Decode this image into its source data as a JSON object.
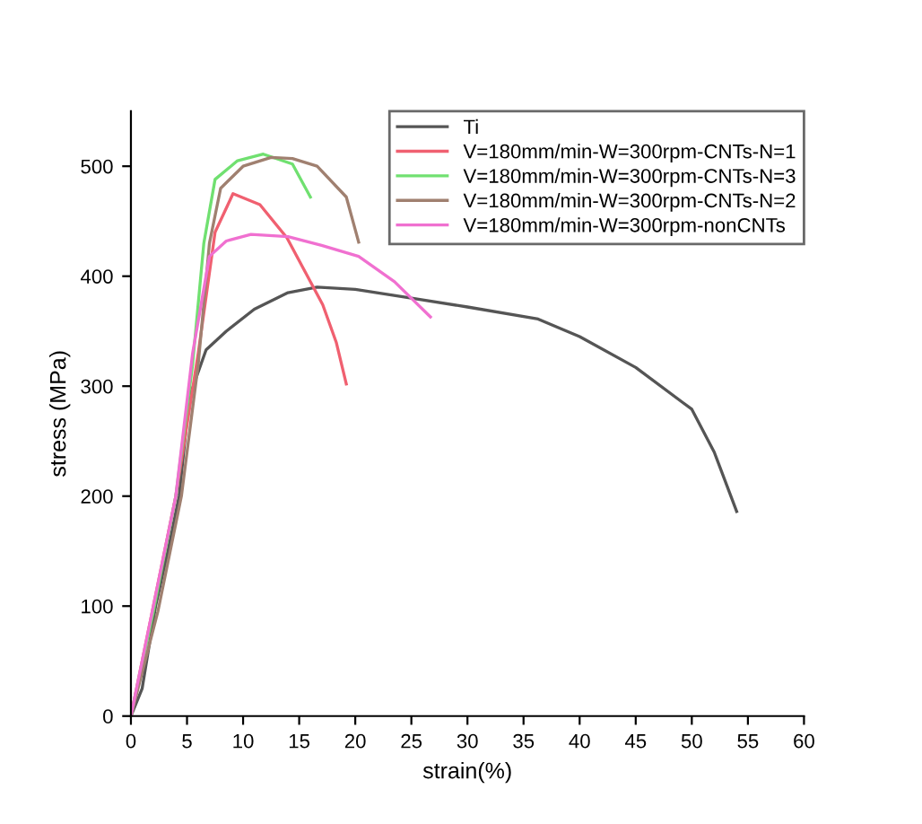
{
  "chart_data": {
    "type": "line",
    "xlabel": "strain(%)",
    "ylabel": "stress (MPa)",
    "xlim": [
      0,
      60
    ],
    "ylim": [
      0,
      550
    ],
    "xticks": [
      0,
      5,
      10,
      15,
      20,
      25,
      30,
      35,
      40,
      45,
      50,
      55,
      60
    ],
    "yticks": [
      0,
      100,
      200,
      300,
      400,
      500
    ],
    "grid": false,
    "legend": "top right",
    "marker": "none",
    "line_style": "solid",
    "series": [
      {
        "name": "Ti",
        "color": "#555555",
        "x": [
          0,
          1,
          2.2,
          3.3,
          4.3,
          5.2,
          6.7,
          8.5,
          11,
          14,
          16.6,
          20,
          25,
          30,
          36.3,
          40,
          45,
          50,
          52,
          54
        ],
        "values": [
          0,
          25,
          100,
          150,
          200,
          290,
          333,
          350,
          370,
          385,
          390,
          388,
          380,
          372,
          361,
          345,
          317,
          279,
          240,
          186
        ]
      },
      {
        "name": "V=180mm/min-W=300rpm-CNTs-N=1",
        "color": "#f06070",
        "x": [
          0,
          2,
          4,
          6,
          7.5,
          9.1,
          11.5,
          13.9,
          17.1,
          18.3,
          19.2
        ],
        "values": [
          0,
          100,
          200,
          330,
          440,
          475,
          465,
          435,
          374,
          340,
          302
        ]
      },
      {
        "name": "V=180mm/min-W=300rpm-CNTs-N=3",
        "color": "#70e070",
        "x": [
          0,
          2,
          4,
          5.5,
          6.5,
          7.5,
          9.5,
          11.8,
          14.4,
          16
        ],
        "values": [
          0,
          95,
          200,
          320,
          430,
          488,
          505,
          511,
          502,
          472
        ]
      },
      {
        "name": "V=180mm/min-W=300rpm-CNTs-N=2",
        "color": "#a08070",
        "x": [
          0,
          2.4,
          4.5,
          6,
          7,
          8,
          10,
          12.5,
          14.4,
          16.6,
          19.2,
          20.3
        ],
        "values": [
          0,
          95,
          200,
          320,
          430,
          480,
          500,
          508,
          507,
          500,
          472,
          431
        ]
      },
      {
        "name": "V=180mm/min-W=300rpm-nonCNTs",
        "color": "#f070d0",
        "x": [
          0,
          2,
          4,
          5.5,
          7,
          8.5,
          10.7,
          14,
          17,
          20.3,
          23.5,
          26.7
        ],
        "values": [
          0,
          100,
          200,
          330,
          418,
          432,
          438,
          436,
          428,
          418,
          395,
          363
        ]
      }
    ]
  }
}
